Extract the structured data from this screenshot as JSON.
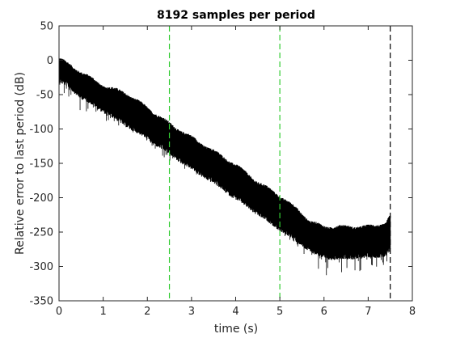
{
  "chart_data": {
    "type": "line",
    "title": "8192 samples per period",
    "xlabel": "time (s)",
    "ylabel": "Relative error to last period (dB)",
    "xlim": [
      0,
      8
    ],
    "ylim": [
      -350,
      50
    ],
    "xticks": [
      0,
      1,
      2,
      3,
      4,
      5,
      6,
      7,
      8
    ],
    "yticks": [
      50,
      0,
      -50,
      -100,
      -150,
      -200,
      -250,
      -300,
      -350
    ],
    "grid": false,
    "legend": "none",
    "series": [
      {
        "color": "#000000",
        "envelope": {
          "x": [
            0.0,
            0.2,
            0.5,
            1.0,
            1.5,
            2.0,
            2.5,
            3.0,
            3.5,
            4.0,
            4.5,
            5.0,
            5.4,
            5.7,
            6.0,
            6.5,
            7.0,
            7.4,
            7.5
          ],
          "upper": [
            0,
            -8,
            -20,
            -40,
            -50,
            -72,
            -95,
            -115,
            -135,
            -155,
            -180,
            -200,
            -220,
            -238,
            -245,
            -245,
            -245,
            -240,
            -228
          ],
          "lower": [
            -25,
            -32,
            -48,
            -68,
            -88,
            -108,
            -130,
            -152,
            -172,
            -195,
            -218,
            -240,
            -258,
            -272,
            -282,
            -282,
            -280,
            -278,
            -270
          ],
          "spike_min": [
            -45,
            -60,
            -75,
            -88,
            -100,
            -118,
            -150,
            -165,
            -175,
            -200,
            -225,
            -250,
            -272,
            -295,
            -315,
            -310,
            -305,
            -300,
            -290
          ]
        }
      }
    ],
    "reference_lines": [
      {
        "x": 2.5,
        "color": "#33cc33",
        "style": "dashed"
      },
      {
        "x": 5.0,
        "color": "#33cc33",
        "style": "dashed"
      },
      {
        "x": 7.5,
        "color": "#000000",
        "style": "dashed"
      }
    ]
  }
}
